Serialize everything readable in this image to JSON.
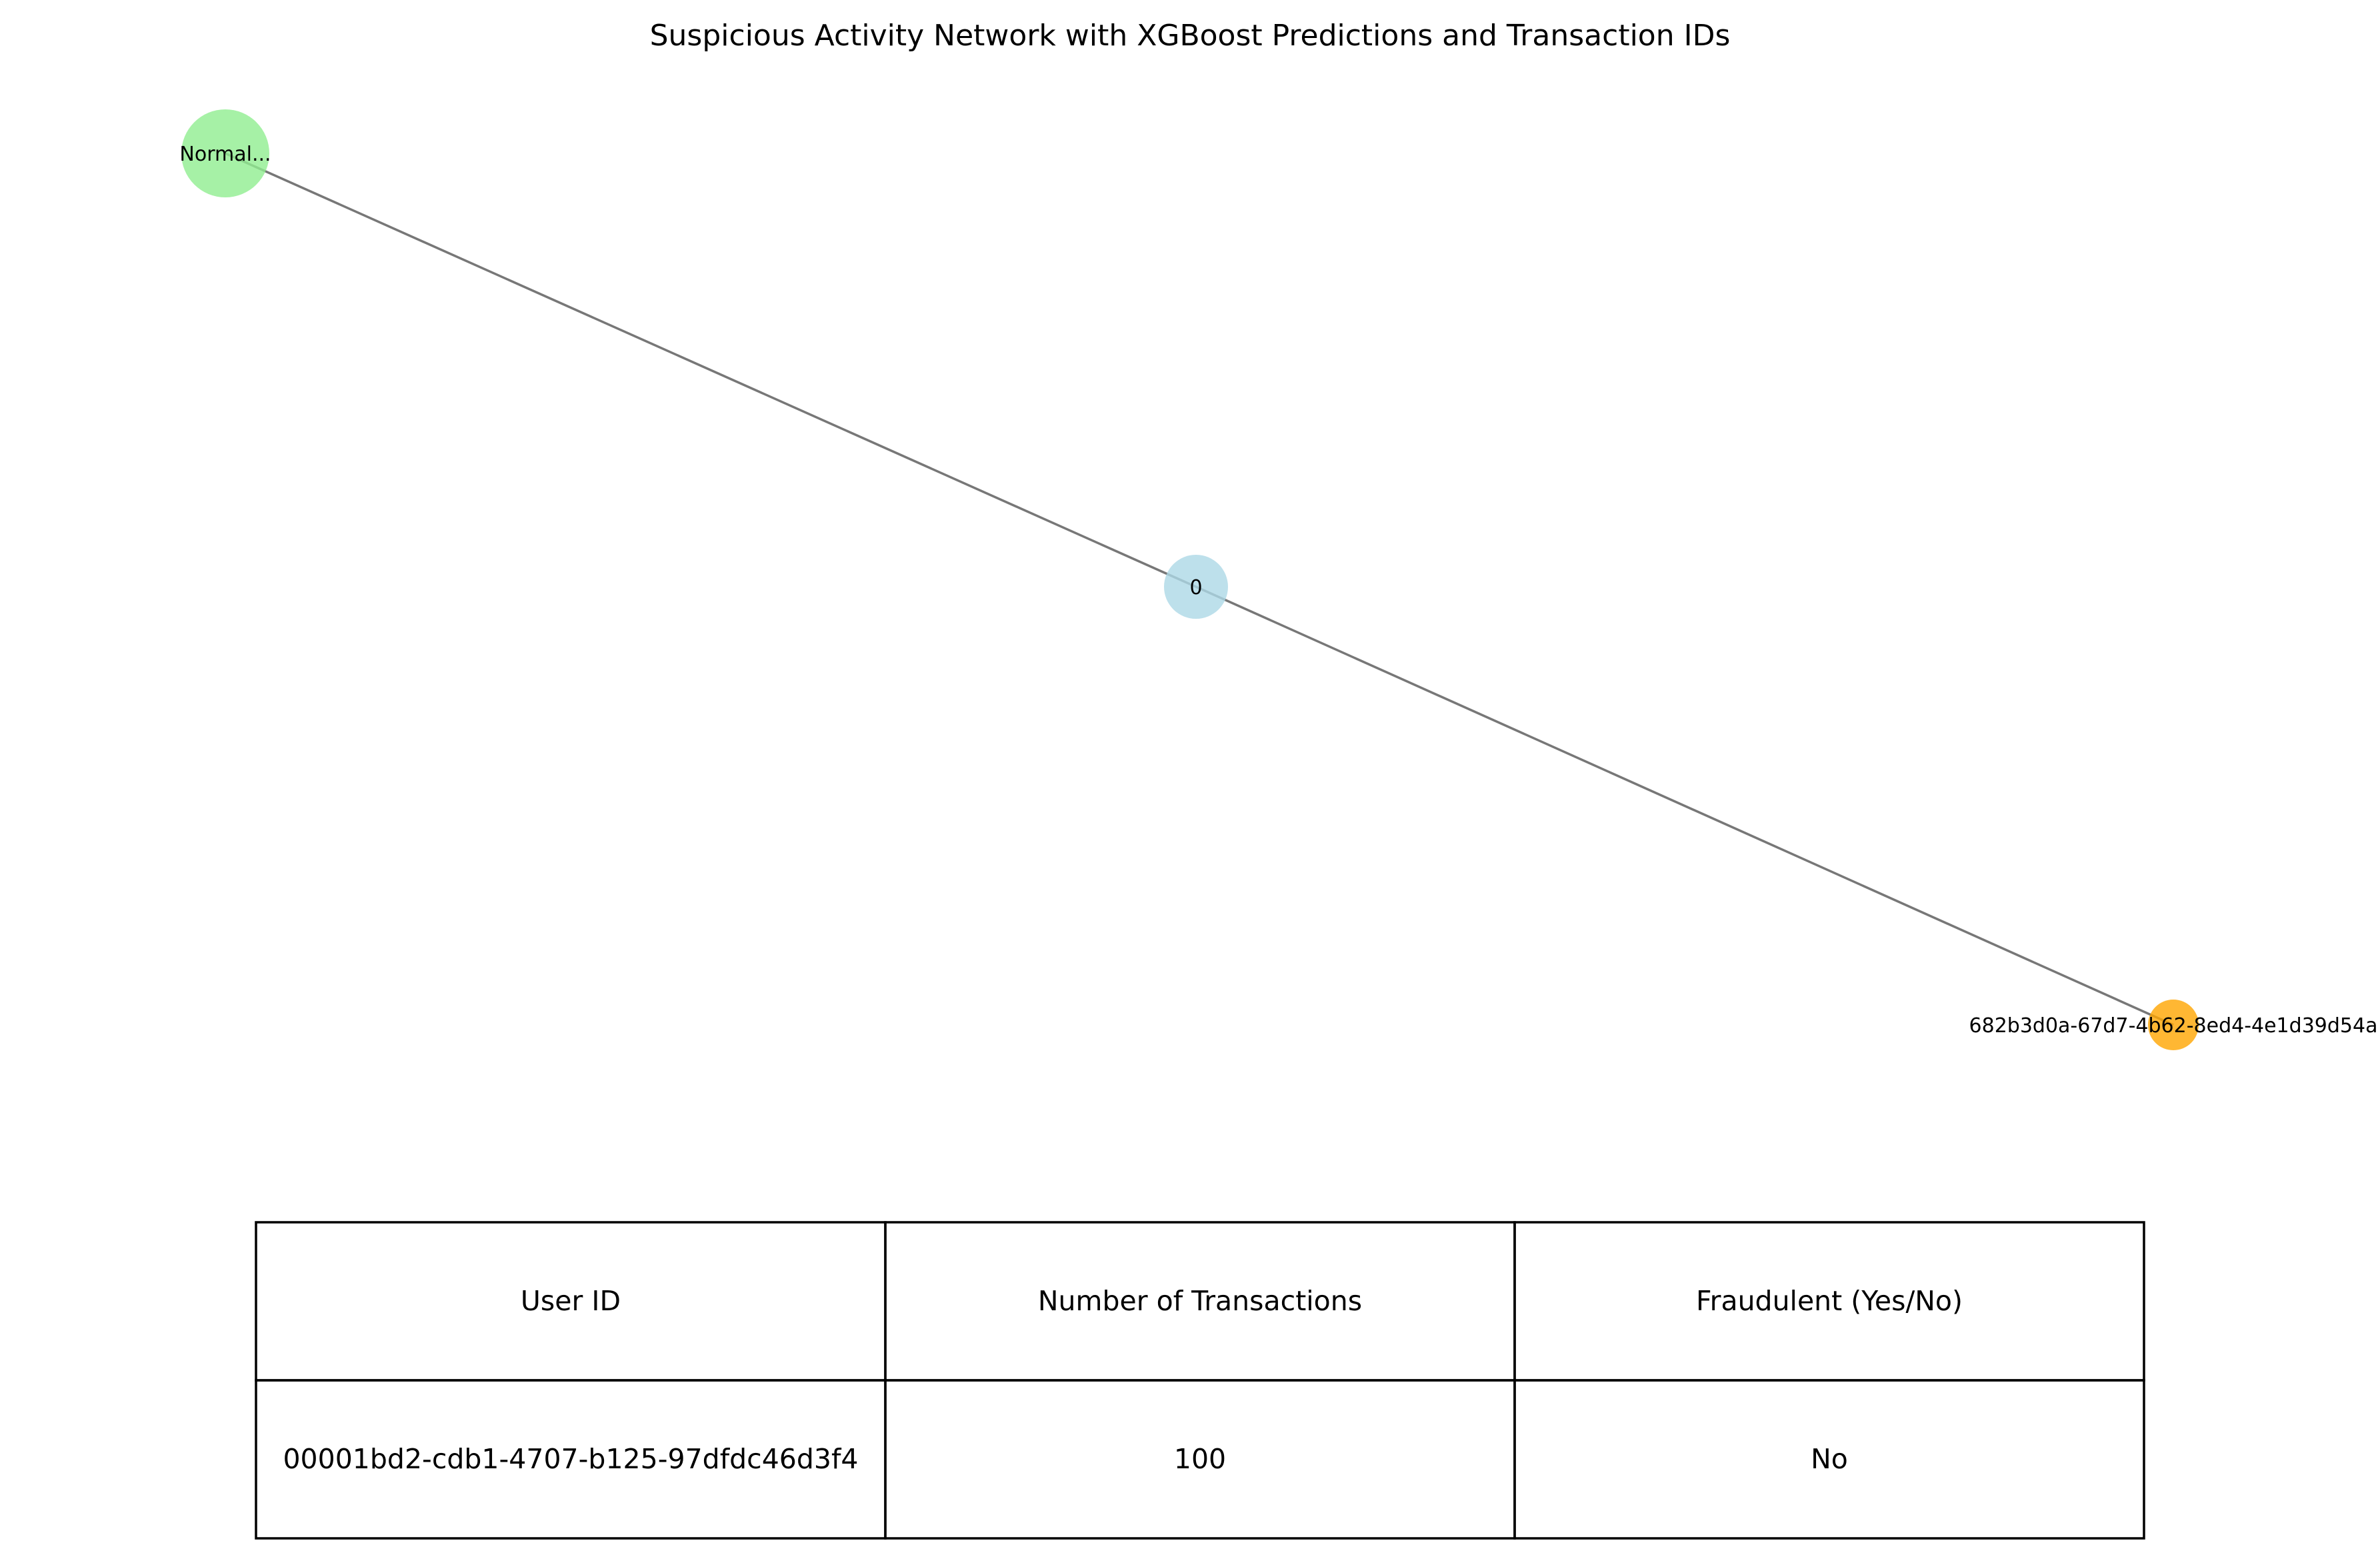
{
  "title": "Suspicious Activity Network with XGBoost Predictions and Transaction IDs",
  "network": {
    "nodes": [
      {
        "id": "normal",
        "label": "Normal...",
        "color": "#90EE90",
        "kind": "prediction"
      },
      {
        "id": "user",
        "label": "0",
        "color": "#ADD8E6",
        "kind": "user"
      },
      {
        "id": "transaction",
        "label": "682b3d0a-67d7-4b62-8ed4-4e1d39d54a",
        "color": "#FFA500",
        "kind": "transaction"
      }
    ],
    "edges": [
      {
        "from": "normal",
        "to": "user"
      },
      {
        "from": "user",
        "to": "transaction"
      }
    ],
    "edge_color": "#777777"
  },
  "table": {
    "headers": [
      "User ID",
      "Number of Transactions",
      "Fraudulent (Yes/No)"
    ],
    "rows": [
      [
        "00001bd2-cdb1-4707-b125-97dfdc46d3f4",
        "100",
        "No"
      ]
    ]
  }
}
